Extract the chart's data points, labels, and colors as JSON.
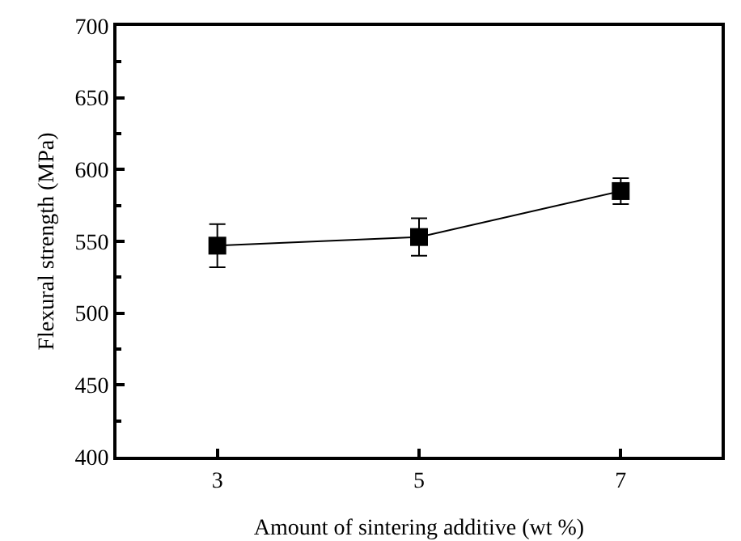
{
  "chart_data": {
    "type": "line",
    "xlabel": "Amount of sintering additive (wt %)",
    "ylabel": "Flexural strength (MPa)",
    "x": [
      3,
      5,
      7
    ],
    "series": [
      {
        "color": "#000000",
        "values": [
          547,
          553,
          585
        ],
        "errors": [
          15,
          13,
          9
        ]
      }
    ],
    "xlim": [
      2,
      8
    ],
    "xticks": [
      3,
      5,
      7
    ],
    "ylim": [
      400,
      700
    ],
    "yticks": [
      400,
      450,
      500,
      550,
      600,
      650,
      700
    ],
    "grid": false,
    "legend": false,
    "marker": "square",
    "line_style": "solid"
  }
}
